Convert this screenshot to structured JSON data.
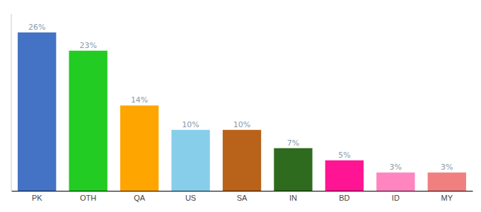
{
  "chart_data": {
    "type": "bar",
    "categories": [
      "PK",
      "OTH",
      "QA",
      "US",
      "SA",
      "IN",
      "BD",
      "ID",
      "MY"
    ],
    "values": [
      26,
      23,
      14,
      10,
      10,
      7,
      5,
      3,
      3
    ],
    "value_labels": [
      "26%",
      "23%",
      "14%",
      "10%",
      "10%",
      "7%",
      "5%",
      "3%",
      "3%"
    ],
    "colors": [
      "#4472C4",
      "#22CC22",
      "#FFA500",
      "#87CEEB",
      "#B8621A",
      "#2E6B1E",
      "#FF1493",
      "#FF85C0",
      "#F08080"
    ],
    "ylim": [
      0,
      29
    ],
    "data_labels": true,
    "tick_labels": "x",
    "grid": false
  }
}
